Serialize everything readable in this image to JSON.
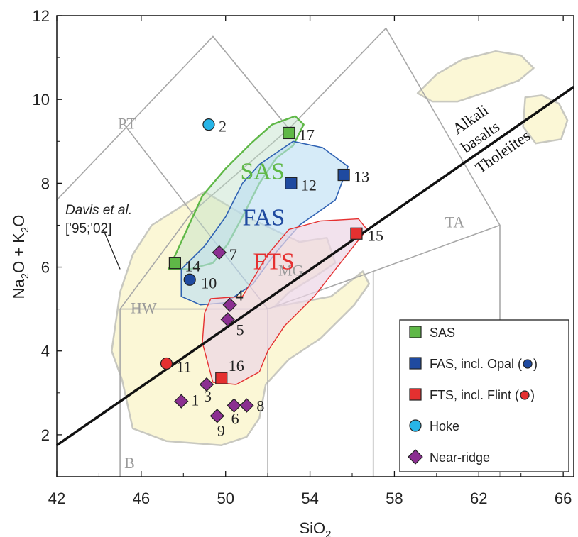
{
  "chart_data": {
    "type": "scatter",
    "xlabel": "SiO2",
    "ylabel": "Na2O + K2O",
    "xlim": [
      42,
      66.5
    ],
    "ylim": [
      1,
      12
    ],
    "x_ticks": [
      42,
      46,
      50,
      54,
      58,
      62,
      66
    ],
    "y_ticks": [
      2,
      4,
      6,
      8,
      10,
      12
    ],
    "colors": {
      "SAS": "#5fb847",
      "FAS": "#1f4aa0",
      "FTS": "#e53030",
      "Hoke": "#27b5e8",
      "Near-ridge": "#8b2f91",
      "davis_field": "#fbf7d6",
      "grid_lines": "#a8a8a8"
    },
    "series": [
      {
        "name": "SAS",
        "marker": "square",
        "points": [
          {
            "label": "14",
            "x": 47.6,
            "y": 6.1
          },
          {
            "label": "17",
            "x": 53.0,
            "y": 9.2
          }
        ]
      },
      {
        "name": "FAS, incl. Opal",
        "marker": "square",
        "points": [
          {
            "label": "12",
            "x": 53.1,
            "y": 8.0
          },
          {
            "label": "13",
            "x": 55.6,
            "y": 8.2
          }
        ]
      },
      {
        "name": "Opal",
        "marker": "circle",
        "points": [
          {
            "label": "10",
            "x": 48.3,
            "y": 5.7
          }
        ]
      },
      {
        "name": "FTS, incl. Flint",
        "marker": "square",
        "points": [
          {
            "label": "15",
            "x": 56.2,
            "y": 6.8
          },
          {
            "label": "16",
            "x": 49.8,
            "y": 3.35
          }
        ]
      },
      {
        "name": "Flint",
        "marker": "circle",
        "points": [
          {
            "label": "11",
            "x": 47.2,
            "y": 3.7
          }
        ]
      },
      {
        "name": "Hoke",
        "marker": "circle",
        "points": [
          {
            "label": "2",
            "x": 49.2,
            "y": 9.4
          }
        ]
      },
      {
        "name": "Near-ridge",
        "marker": "diamond",
        "points": [
          {
            "label": "1",
            "x": 47.9,
            "y": 2.8
          },
          {
            "label": "3",
            "x": 49.1,
            "y": 3.2
          },
          {
            "label": "4",
            "x": 50.2,
            "y": 5.1
          },
          {
            "label": "5",
            "x": 50.1,
            "y": 4.75
          },
          {
            "label": "6",
            "x": 50.4,
            "y": 2.7
          },
          {
            "label": "7",
            "x": 49.7,
            "y": 6.35
          },
          {
            "label": "8",
            "x": 51.0,
            "y": 2.7
          },
          {
            "label": "9",
            "x": 49.6,
            "y": 2.45
          }
        ]
      }
    ],
    "legend": {
      "placement": "bottom-right",
      "entries": [
        {
          "text": "SAS",
          "series": "SAS",
          "marker": "square"
        },
        {
          "text": "FAS, incl. Opal (",
          "series": "FAS, incl. Opal",
          "marker": "square",
          "inline_marker": "Opal"
        },
        {
          "text": "FTS, incl. Flint (",
          "series": "FTS, incl. Flint",
          "marker": "square",
          "inline_marker": "Flint"
        },
        {
          "text": "Hoke",
          "series": "Hoke",
          "marker": "circle"
        },
        {
          "text": "Near-ridge",
          "series": "Near-ridge",
          "marker": "diamond"
        }
      ],
      "close_paren": ")"
    },
    "trend_line": {
      "from": [
        42,
        1.75
      ],
      "to": [
        66.5,
        10.3
      ]
    },
    "field_labels": [
      "PT",
      "HW",
      "B",
      "MG",
      "TA"
    ],
    "field_label_positions": {
      "PT": [
        44.9,
        9.3
      ],
      "HW": [
        45.5,
        4.9
      ],
      "B": [
        45.2,
        1.2
      ],
      "MG": [
        52.5,
        5.8
      ],
      "TA": [
        60.4,
        6.95
      ]
    },
    "group_labels": [
      {
        "text": "SAS",
        "x": 50.7,
        "y": 8.1,
        "color": "#5fb847"
      },
      {
        "text": "FAS",
        "x": 50.8,
        "y": 7.0,
        "color": "#1f4aa0"
      },
      {
        "text": "FTS",
        "x": 51.3,
        "y": 5.95,
        "color": "#e53030"
      }
    ],
    "annotations": {
      "davis_line1": "Davis et al.",
      "davis_line2": "['95;'02]",
      "alkali_1": "Alkali",
      "alkali_2": "basalts",
      "tholeiites": "Tholeiites"
    },
    "classification_lines": [
      [
        [
          42,
          7.6
        ],
        [
          49.4,
          11.5
        ],
        [
          53,
          9.3
        ],
        [
          57.6,
          11.7
        ],
        [
          63,
          7.0
        ],
        [
          63,
          1.0
        ]
      ],
      [
        [
          45.2,
          9.4
        ],
        [
          48.4,
          7.3
        ],
        [
          52,
          5.0
        ],
        [
          57,
          5.9
        ],
        [
          63,
          7.0
        ]
      ],
      [
        [
          45,
          5.0
        ],
        [
          52,
          5.0
        ]
      ],
      [
        [
          45,
          1
        ],
        [
          45,
          5
        ],
        [
          48.4,
          7.3
        ],
        [
          53,
          9.3
        ]
      ],
      [
        [
          52,
          1
        ],
        [
          52,
          5
        ]
      ],
      [
        [
          57,
          1
        ],
        [
          57,
          5.9
        ]
      ],
      [
        [
          49.4,
          11.5
        ],
        [
          53,
          9.3
        ]
      ]
    ]
  }
}
